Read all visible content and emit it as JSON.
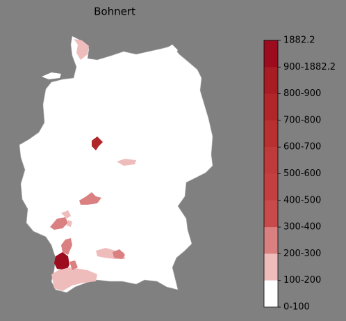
{
  "title": "Bohnert",
  "legend": {
    "labels": [
      "1882.2",
      "900-1882.2",
      "800-900",
      "700-800",
      "600-700",
      "500-600",
      "400-500",
      "300-400",
      "200-300",
      "100-200",
      "0-100"
    ],
    "colors": [
      "#9c0c1e",
      "#a81c24",
      "#b12628",
      "#b93030",
      "#bf3a3a",
      "#c44040",
      "#c94a4a",
      "#db8080",
      "#efbcbc",
      "#ffffff"
    ]
  }
}
